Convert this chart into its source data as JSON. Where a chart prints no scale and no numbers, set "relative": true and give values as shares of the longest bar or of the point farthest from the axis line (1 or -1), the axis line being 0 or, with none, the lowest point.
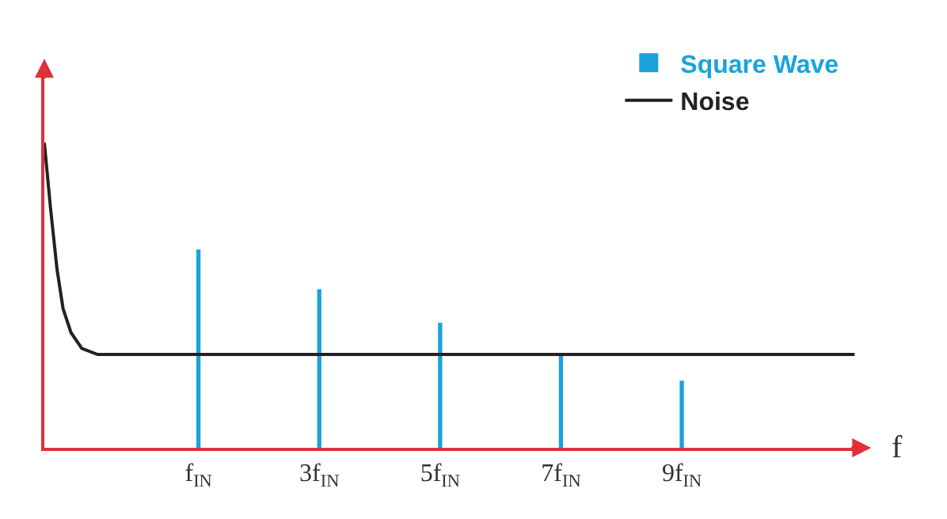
{
  "chart_data": {
    "type": "bar",
    "relative": true,
    "xlabel": "f",
    "xlim": [
      -1.55,
      12
    ],
    "xticks": [
      {
        "value": 1,
        "label": "f$_{IN}$"
      },
      {
        "value": 3,
        "label": "3f$_{IN}$"
      },
      {
        "value": 5,
        "label": "5f$_{IN}$"
      },
      {
        "value": 7,
        "label": "7f$_{IN}$"
      },
      {
        "value": 9,
        "label": "9f$_{IN}$"
      }
    ],
    "tick_labels": "x",
    "legend": "top right",
    "series": [
      {
        "name": "Square Wave",
        "color": "#1aa3db",
        "x": [
          1,
          3,
          5,
          7,
          9
        ],
        "values": [
          0.65,
          0.52,
          0.41,
          0.31,
          0.22
        ]
      },
      {
        "name": "Noise",
        "type": "line",
        "color": "#222222",
        "x": [
          -1.55,
          -1.45,
          -1.34,
          -1.24,
          -1.11,
          -0.93,
          -0.67,
          11.86
        ],
        "values": [
          1.0,
          0.79,
          0.585,
          0.456,
          0.378,
          0.326,
          0.306,
          0.306
        ]
      }
    ]
  }
}
